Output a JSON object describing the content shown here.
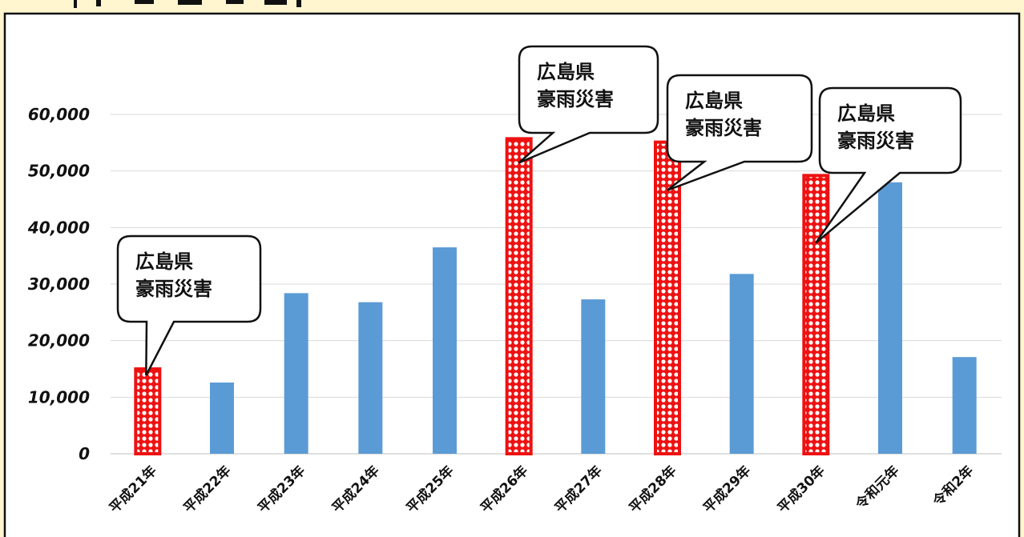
{
  "chart_data": {
    "type": "bar",
    "title": "",
    "xlabel": "",
    "ylabel": "",
    "categories": [
      "平成21年",
      "平成22年",
      "平成23年",
      "平成24年",
      "平成25年",
      "平成26年",
      "平成27年",
      "平成28年",
      "平成29年",
      "平成30年",
      "令和元年",
      "令和2年"
    ],
    "values": [
      15000,
      12600,
      28400,
      26800,
      36500,
      55700,
      27300,
      55100,
      31800,
      49200,
      48000,
      17100
    ],
    "highlighted": [
      true,
      false,
      false,
      false,
      false,
      true,
      false,
      true,
      false,
      true,
      false,
      false
    ],
    "ylim": [
      0,
      60000
    ],
    "yticks": [
      0,
      10000,
      20000,
      30000,
      40000,
      50000,
      60000
    ],
    "ytick_labels": [
      "0",
      "10,000",
      "20,000",
      "30,000",
      "40,000",
      "50,000",
      "60,000"
    ],
    "grid": true,
    "colors": {
      "bar": "#5b9bd5",
      "highlight": "#ee1111",
      "highlight_pattern": "#ffffff",
      "background": "#fff6d0",
      "panel": "#ffffff",
      "grid": "#d9d9d9"
    },
    "annotations": [
      {
        "category": "平成21年",
        "lines": [
          "広島県",
          "豪雨災害"
        ]
      },
      {
        "category": "平成26年",
        "lines": [
          "広島県",
          "豪雨災害"
        ]
      },
      {
        "category": "平成28年",
        "lines": [
          "広島県",
          "豪雨災害"
        ]
      },
      {
        "category": "平成30年",
        "lines": [
          "広島県",
          "豪雨災害"
        ]
      }
    ]
  }
}
